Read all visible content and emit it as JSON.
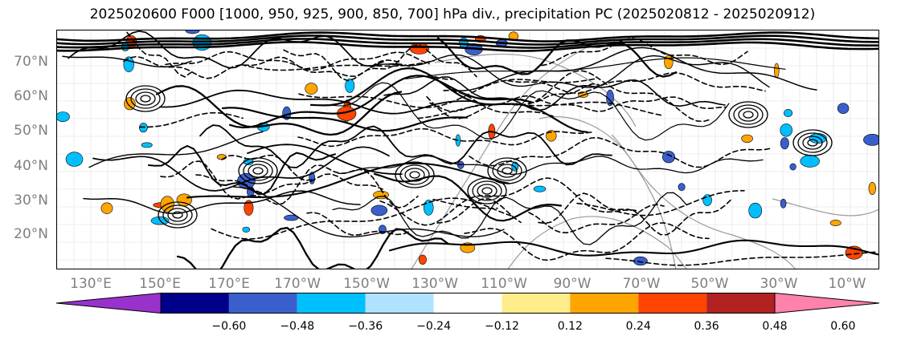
{
  "title": "2025020600 F000 [1000, 950, 925, 900, 850, 700] hPa div., precipitation PC (2025020812 - 2025020912)",
  "map": {
    "lat_ticks": [
      "20°N",
      "30°N",
      "40°N",
      "50°N",
      "60°N",
      "70°N"
    ],
    "lon_ticks": [
      "130°E",
      "150°E",
      "170°E",
      "170°W",
      "150°W",
      "130°W",
      "110°W",
      "90°W",
      "70°W",
      "50°W",
      "30°W",
      "10°W"
    ],
    "contour_color": "#000000",
    "coastline_color": "#999999",
    "grid_color": "#aaaaaa"
  },
  "colorbar": {
    "ticks": [
      "−0.60",
      "−0.48",
      "−0.36",
      "−0.24",
      "−0.12",
      "0.12",
      "0.24",
      "0.36",
      "0.48",
      "0.60"
    ],
    "colors": [
      "#9932cc",
      "#00008b",
      "#3a5fcd",
      "#00bfff",
      "#b0e2ff",
      "#ffffff",
      "#ffec8b",
      "#ffa500",
      "#ff4500",
      "#b22222",
      "#ff82ab"
    ],
    "extend": "both"
  }
}
